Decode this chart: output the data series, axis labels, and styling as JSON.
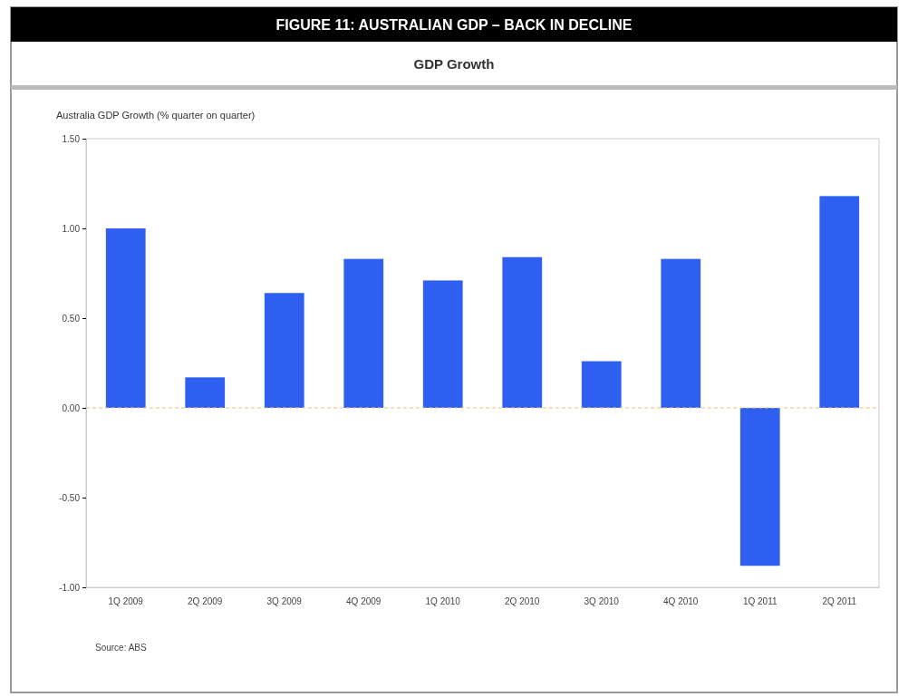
{
  "chart_data": {
    "type": "bar",
    "title": "FIGURE 11: AUSTRALIAN GDP – BACK IN DECLINE",
    "subtitle": "GDP Growth",
    "ylabel": "Australia GDP Growth (% quarter on quarter)",
    "categories": [
      "1Q 2009",
      "2Q 2009",
      "3Q 2009",
      "4Q 2009",
      "1Q 2010",
      "2Q 2010",
      "3Q 2010",
      "4Q 2010",
      "1Q 2011",
      "2Q 2011"
    ],
    "values": [
      1.0,
      0.17,
      0.64,
      0.83,
      0.71,
      0.84,
      0.26,
      0.83,
      -0.88,
      1.18
    ],
    "color": "#2f5ff0",
    "ylim": [
      -1.0,
      1.5
    ],
    "yticks": [
      {
        "value": -1.0,
        "label": "-1.00"
      },
      {
        "value": -0.5,
        "label": "-0.50"
      },
      {
        "value": 0,
        "label": "0.00"
      },
      {
        "value": 0.5,
        "label": "0.50"
      },
      {
        "value": 1.0,
        "label": "1.00"
      },
      {
        "value": 1.5,
        "label": "1.50"
      }
    ],
    "ref_lines": [
      {
        "axis": "y",
        "value": 0,
        "color": "#f0c070",
        "line_style": "dashed"
      }
    ],
    "annotations": [
      "Source: ABS"
    ]
  }
}
